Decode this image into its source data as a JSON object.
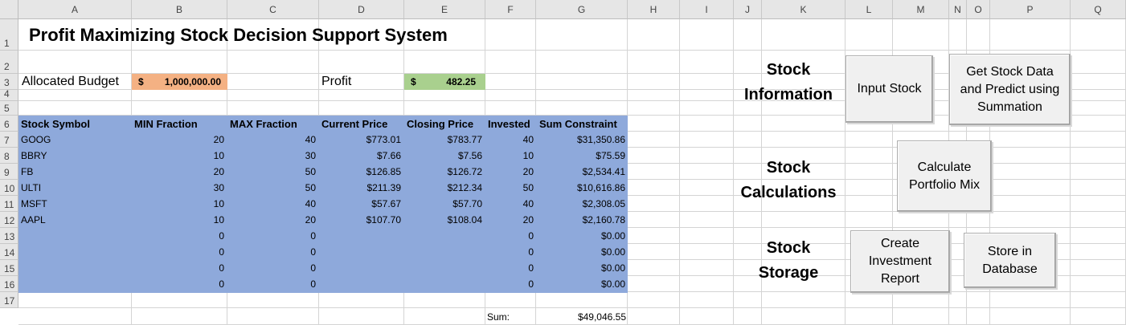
{
  "columns": [
    "A",
    "B",
    "C",
    "D",
    "E",
    "F",
    "G",
    "H",
    "I",
    "J",
    "K",
    "L",
    "M",
    "N",
    "O",
    "P",
    "Q"
  ],
  "rows": [
    "1",
    "2",
    "3",
    "4",
    "5",
    "6",
    "7",
    "8",
    "9",
    "10",
    "11",
    "12",
    "13",
    "14",
    "15",
    "16",
    "17"
  ],
  "title": "Profit Maximizing Stock Decision Support System",
  "budget": {
    "label": "Allocated Budget",
    "currency": "$",
    "value": "1,000,000.00",
    "color": "#f4b183"
  },
  "profit": {
    "label": "Profit",
    "currency": "$",
    "value": "482.25",
    "color": "#a9d08e"
  },
  "table": {
    "headers": [
      "Stock Symbol",
      "MIN Fraction",
      "MAX Fraction",
      "Current Price",
      "Closing Price",
      "Invested",
      "Sum Constraint"
    ],
    "rows": [
      [
        "GOOG",
        "20",
        "40",
        "$773.01",
        "$783.77",
        "40",
        "$31,350.86"
      ],
      [
        "BBRY",
        "10",
        "30",
        "$7.66",
        "$7.56",
        "10",
        "$75.59"
      ],
      [
        "FB",
        "20",
        "50",
        "$126.85",
        "$126.72",
        "20",
        "$2,534.41"
      ],
      [
        "ULTI",
        "30",
        "50",
        "$211.39",
        "$212.34",
        "50",
        "$10,616.86"
      ],
      [
        "MSFT",
        "10",
        "40",
        "$57.67",
        "$57.70",
        "40",
        "$2,308.05"
      ],
      [
        "AAPL",
        "10",
        "20",
        "$107.70",
        "$108.04",
        "20",
        "$2,160.78"
      ],
      [
        "",
        "0",
        "0",
        "",
        "",
        "0",
        "$0.00"
      ],
      [
        "",
        "0",
        "0",
        "",
        "",
        "0",
        "$0.00"
      ],
      [
        "",
        "0",
        "0",
        "",
        "",
        "0",
        "$0.00"
      ],
      [
        "",
        "0",
        "0",
        "",
        "",
        "0",
        "$0.00"
      ]
    ],
    "fill_color": "#8ea9db"
  },
  "sum": {
    "label": "Sum:",
    "value": "$49,046.55"
  },
  "sections": {
    "information": "Stock\nInformation",
    "calculations": "Stock\nCalculations",
    "storage": "Stock\nStorage"
  },
  "buttons": {
    "input_stock": "Input Stock",
    "get_stock_data": "Get Stock Data\nand Predict using\nSummation",
    "calculate_mix": "Calculate\nPortfolio Mix",
    "create_report": "Create\nInvestment\nReport",
    "store_db": "Store in\nDatabase"
  }
}
